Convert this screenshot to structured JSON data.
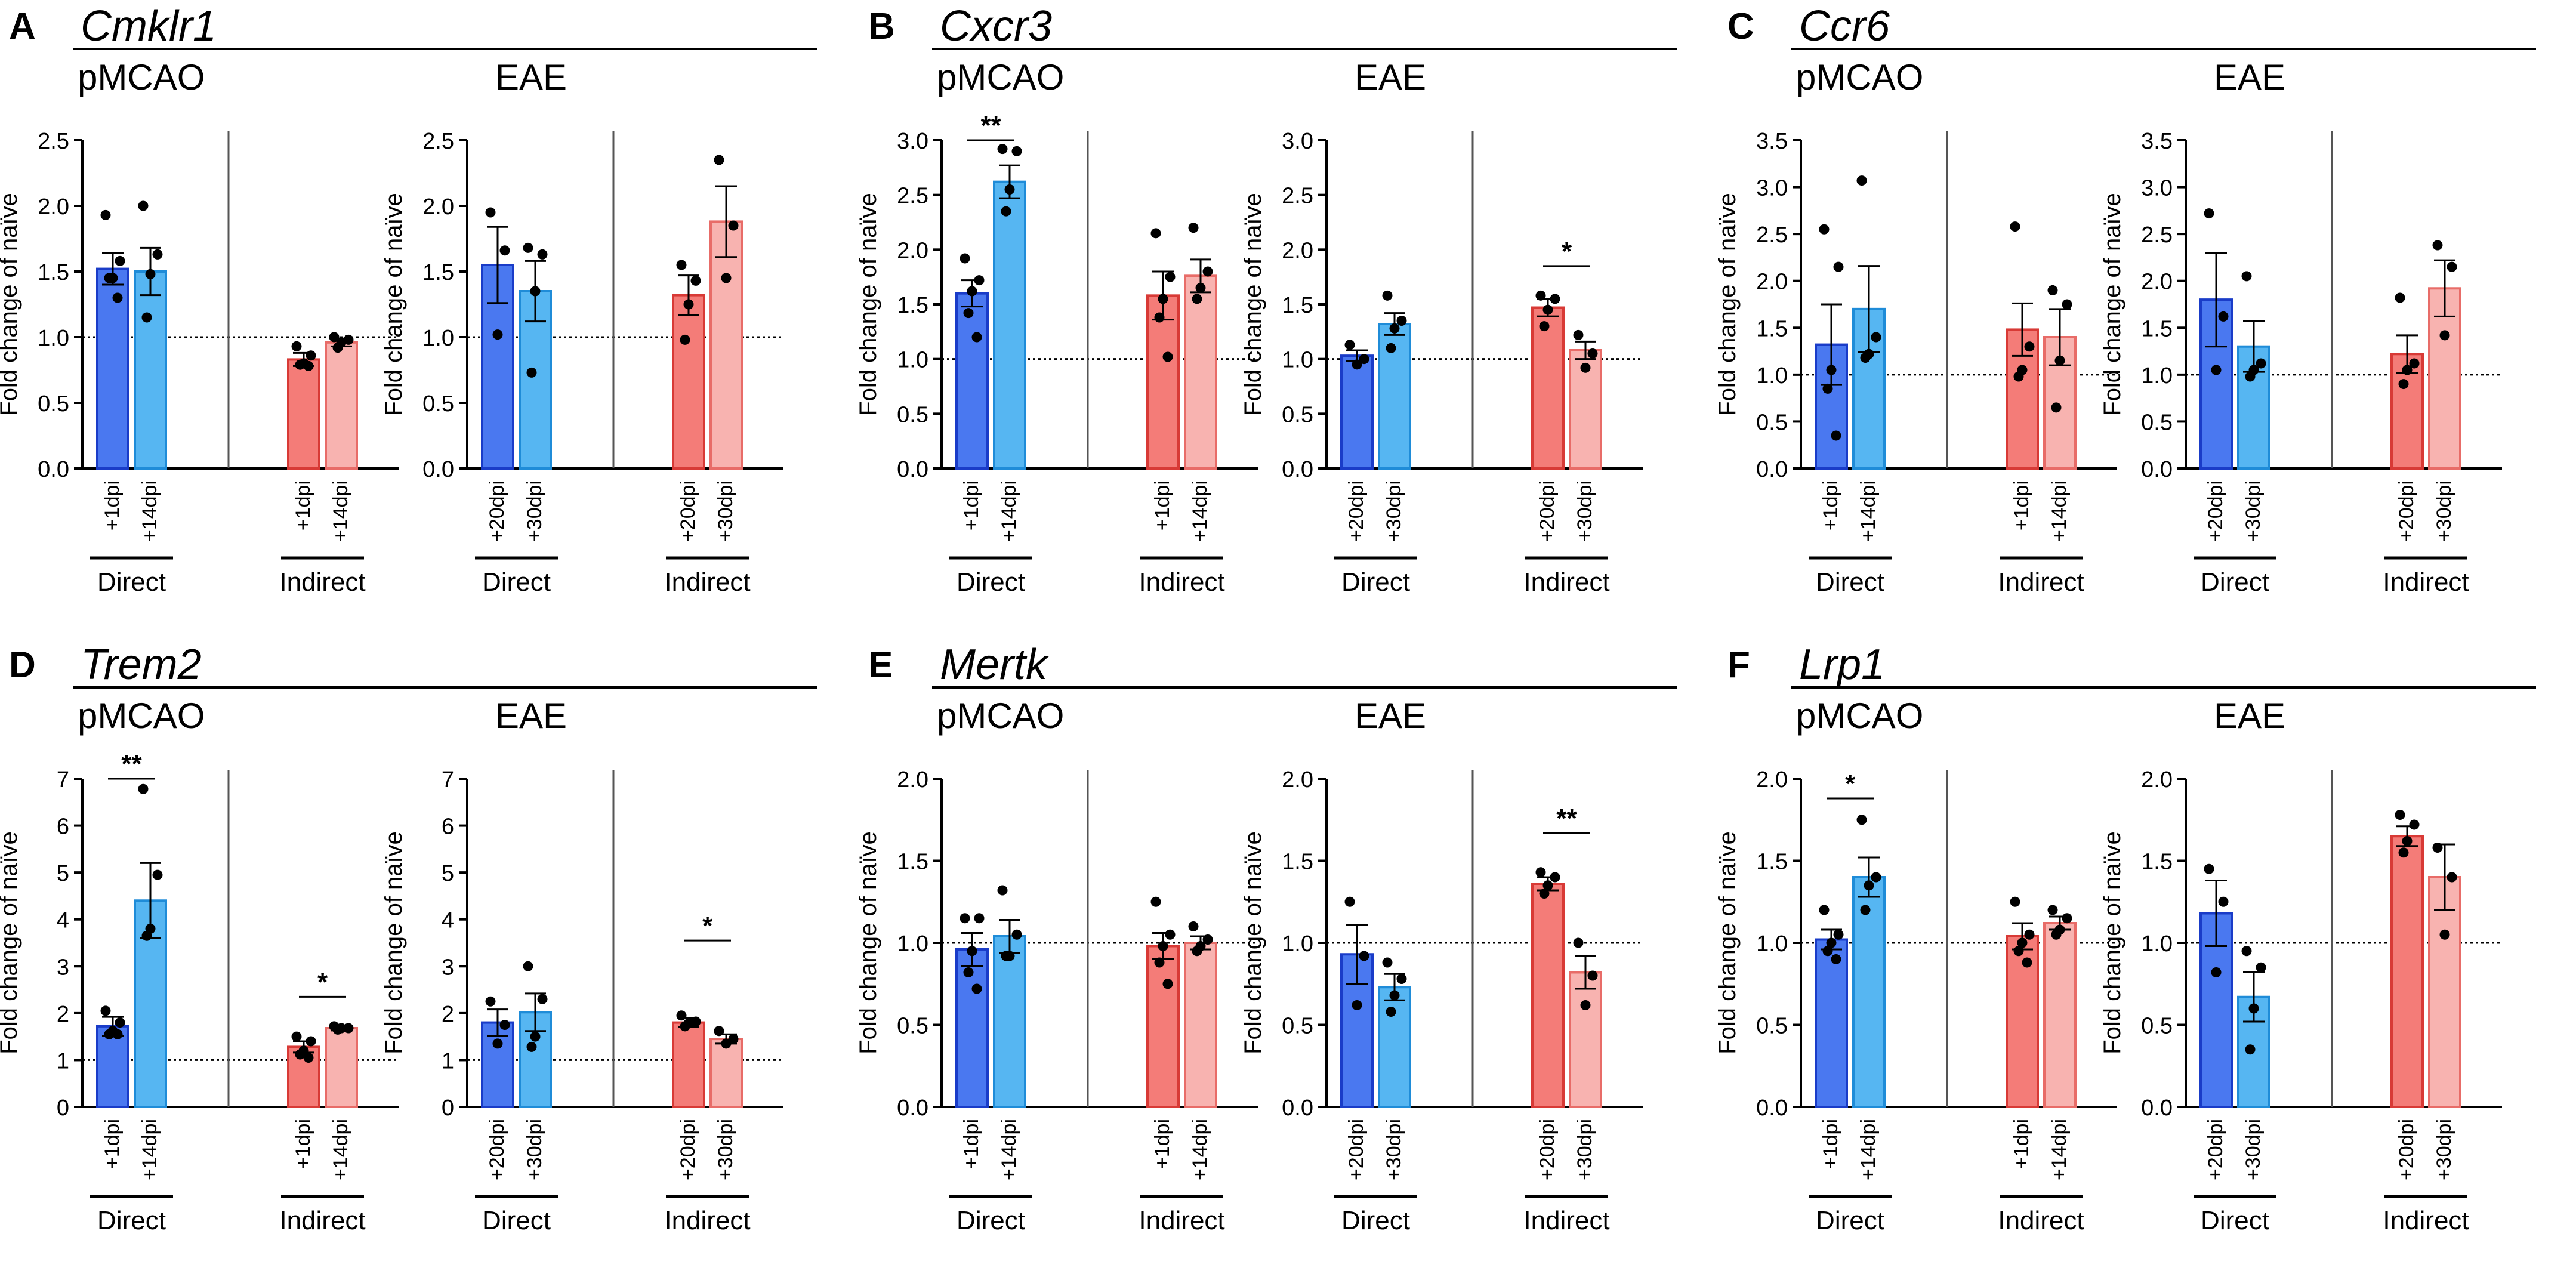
{
  "colors": {
    "direct_early": "#4a78f0",
    "direct_early_edge": "#1a3cc8",
    "direct_late": "#56b6f2",
    "direct_late_edge": "#1f8cd8",
    "indirect_early": "#f47c78",
    "indirect_early_edge": "#d83a36",
    "indirect_late": "#f8b3b0",
    "indirect_late_edge": "#e86c68"
  },
  "chart_data": [
    {
      "type": "bar",
      "panel_letter": "A",
      "gene": "Cmklr1",
      "ylabel": "Fold change of naïve",
      "ylim": [
        0,
        2.5
      ],
      "yticks": [
        "0.0",
        "0.5",
        "1.0",
        "1.5",
        "2.0",
        "2.5"
      ],
      "baseline": 1.0,
      "subplots": [
        {
          "title": "pMCAO",
          "group_labels": [
            "Direct",
            "Indirect"
          ],
          "bars": [
            {
              "label": "+1dpi",
              "mean": 1.52,
              "sem": 0.12,
              "points": [
                1.93,
                1.58,
                1.45,
                1.45,
                1.3
              ]
            },
            {
              "label": "+14dpi",
              "mean": 1.5,
              "sem": 0.18,
              "points": [
                2.0,
                1.63,
                1.48,
                1.15
              ]
            },
            {
              "label": "+1dpi",
              "mean": 0.83,
              "sem": 0.05,
              "points": [
                0.93,
                0.86,
                0.8,
                0.79,
                0.78
              ]
            },
            {
              "label": "+14dpi",
              "mean": 0.96,
              "sem": 0.03,
              "points": [
                1.0,
                0.98,
                0.96,
                0.92
              ]
            }
          ],
          "sig": []
        },
        {
          "title": "EAE",
          "group_labels": [
            "Direct",
            "Indirect"
          ],
          "bars": [
            {
              "label": "+20dpi",
              "mean": 1.55,
              "sem": 0.29,
              "points": [
                1.95,
                1.66,
                1.02
              ]
            },
            {
              "label": "+30dpi",
              "mean": 1.35,
              "sem": 0.23,
              "points": [
                1.68,
                1.63,
                1.35,
                0.73
              ]
            },
            {
              "label": "+20dpi",
              "mean": 1.32,
              "sem": 0.15,
              "points": [
                1.55,
                1.43,
                1.25,
                0.98
              ]
            },
            {
              "label": "+30dpi",
              "mean": 1.88,
              "sem": 0.27,
              "points": [
                2.35,
                1.85,
                1.45
              ]
            }
          ],
          "sig": []
        }
      ]
    },
    {
      "type": "bar",
      "panel_letter": "B",
      "gene": "Cxcr3",
      "ylabel": "Fold change of naïve",
      "ylim": [
        0,
        3.0
      ],
      "yticks": [
        "0.0",
        "0.5",
        "1.0",
        "1.5",
        "2.0",
        "2.5",
        "3.0"
      ],
      "baseline": 1.0,
      "subplots": [
        {
          "title": "pMCAO",
          "group_labels": [
            "Direct",
            "Indirect"
          ],
          "bars": [
            {
              "label": "+1dpi",
              "mean": 1.6,
              "sem": 0.12,
              "points": [
                1.92,
                1.72,
                1.62,
                1.42,
                1.2
              ]
            },
            {
              "label": "+14dpi",
              "mean": 2.62,
              "sem": 0.15,
              "points": [
                2.92,
                2.9,
                2.55,
                2.35
              ]
            },
            {
              "label": "+1dpi",
              "mean": 1.58,
              "sem": 0.22,
              "points": [
                2.15,
                1.75,
                1.55,
                1.38,
                1.02
              ]
            },
            {
              "label": "+14dpi",
              "mean": 1.76,
              "sem": 0.15,
              "points": [
                2.2,
                1.8,
                1.65,
                1.55
              ]
            }
          ],
          "sig": [
            {
              "from": 0,
              "to": 1,
              "label": "**",
              "level": 3.0
            }
          ]
        },
        {
          "title": "EAE",
          "group_labels": [
            "Direct",
            "Indirect"
          ],
          "bars": [
            {
              "label": "+20dpi",
              "mean": 1.03,
              "sem": 0.05,
              "points": [
                1.13,
                1.0,
                0.95
              ]
            },
            {
              "label": "+30dpi",
              "mean": 1.32,
              "sem": 0.1,
              "points": [
                1.58,
                1.35,
                1.28,
                1.1
              ]
            },
            {
              "label": "+20dpi",
              "mean": 1.47,
              "sem": 0.08,
              "points": [
                1.58,
                1.55,
                1.45,
                1.3
              ]
            },
            {
              "label": "+30dpi",
              "mean": 1.08,
              "sem": 0.08,
              "points": [
                1.22,
                1.05,
                0.92
              ]
            }
          ],
          "sig": [
            {
              "from": 2,
              "to": 3,
              "label": "*",
              "level": 1.85
            }
          ]
        }
      ]
    },
    {
      "type": "bar",
      "panel_letter": "C",
      "gene": "Ccr6",
      "ylabel": "Fold change of naïve",
      "ylim": [
        0,
        3.5
      ],
      "yticks": [
        "0.0",
        "0.5",
        "1.0",
        "1.5",
        "2.0",
        "2.5",
        "3.0",
        "3.5"
      ],
      "baseline": 1.0,
      "subplots": [
        {
          "title": "pMCAO",
          "group_labels": [
            "Direct",
            "Indirect"
          ],
          "bars": [
            {
              "label": "+1dpi",
              "mean": 1.32,
              "sem": 0.43,
              "points": [
                2.55,
                2.15,
                1.05,
                0.85,
                0.35
              ]
            },
            {
              "label": "+14dpi",
              "mean": 1.7,
              "sem": 0.46,
              "points": [
                3.07,
                1.4,
                1.22,
                1.18
              ]
            },
            {
              "label": "+1dpi",
              "mean": 1.48,
              "sem": 0.28,
              "points": [
                2.58,
                1.3,
                1.05,
                0.98
              ]
            },
            {
              "label": "+14dpi",
              "mean": 1.4,
              "sem": 0.3,
              "points": [
                1.9,
                1.75,
                1.15,
                0.65
              ]
            }
          ],
          "sig": []
        },
        {
          "title": "EAE",
          "group_labels": [
            "Direct",
            "Indirect"
          ],
          "bars": [
            {
              "label": "+20dpi",
              "mean": 1.8,
              "sem": 0.5,
              "points": [
                2.72,
                1.62,
                1.05
              ]
            },
            {
              "label": "+30dpi",
              "mean": 1.3,
              "sem": 0.27,
              "points": [
                2.05,
                1.12,
                1.05,
                0.98
              ]
            },
            {
              "label": "+20dpi",
              "mean": 1.22,
              "sem": 0.2,
              "points": [
                1.82,
                1.12,
                1.05,
                0.9
              ]
            },
            {
              "label": "+30dpi",
              "mean": 1.92,
              "sem": 0.3,
              "points": [
                2.38,
                2.15,
                1.42
              ]
            }
          ],
          "sig": []
        }
      ]
    },
    {
      "type": "bar",
      "panel_letter": "D",
      "gene": "Trem2",
      "ylabel": "Fold change of naïve",
      "ylim": [
        0,
        7
      ],
      "yticks": [
        "0",
        "1",
        "2",
        "3",
        "4",
        "5",
        "6",
        "7"
      ],
      "baseline": 1.0,
      "subplots": [
        {
          "title": "pMCAO",
          "group_labels": [
            "Direct",
            "Indirect"
          ],
          "bars": [
            {
              "label": "+1dpi",
              "mean": 1.72,
              "sem": 0.2,
              "points": [
                2.05,
                1.8,
                1.62,
                1.55,
                1.55
              ]
            },
            {
              "label": "+14dpi",
              "mean": 4.4,
              "sem": 0.8,
              "points": [
                6.78,
                4.95,
                3.8,
                3.65
              ]
            },
            {
              "label": "+1dpi",
              "mean": 1.28,
              "sem": 0.12,
              "points": [
                1.5,
                1.4,
                1.2,
                1.12,
                1.05
              ]
            },
            {
              "label": "+14dpi",
              "mean": 1.68,
              "sem": 0.05,
              "points": [
                1.72,
                1.68,
                1.68,
                1.65
              ]
            }
          ],
          "sig": [
            {
              "from": 0,
              "to": 1,
              "label": "**",
              "level": 7.0
            },
            {
              "from": 2,
              "to": 3,
              "label": "*",
              "level": 2.35
            }
          ]
        },
        {
          "title": "EAE",
          "group_labels": [
            "Direct",
            "Indirect"
          ],
          "bars": [
            {
              "label": "+20dpi",
              "mean": 1.8,
              "sem": 0.28,
              "points": [
                2.25,
                1.75,
                1.35
              ]
            },
            {
              "label": "+30dpi",
              "mean": 2.02,
              "sem": 0.4,
              "points": [
                3.0,
                2.3,
                1.5,
                1.28
              ]
            },
            {
              "label": "+20dpi",
              "mean": 1.8,
              "sem": 0.1,
              "points": [
                1.95,
                1.82,
                1.78,
                1.72
              ]
            },
            {
              "label": "+30dpi",
              "mean": 1.45,
              "sem": 0.1,
              "points": [
                1.62,
                1.45,
                1.35
              ]
            }
          ],
          "sig": [
            {
              "from": 2,
              "to": 3,
              "label": "*",
              "level": 3.55
            }
          ]
        }
      ]
    },
    {
      "type": "bar",
      "panel_letter": "E",
      "gene": "Mertk",
      "ylabel": "Fold change of naïve",
      "ylim": [
        0,
        2.0
      ],
      "yticks": [
        "0.0",
        "0.5",
        "1.0",
        "1.5",
        "2.0"
      ],
      "baseline": 1.0,
      "subplots": [
        {
          "title": "pMCAO",
          "group_labels": [
            "Direct",
            "Indirect"
          ],
          "bars": [
            {
              "label": "+1dpi",
              "mean": 0.96,
              "sem": 0.1,
              "points": [
                1.15,
                1.15,
                0.95,
                0.82,
                0.72
              ]
            },
            {
              "label": "+14dpi",
              "mean": 1.04,
              "sem": 0.1,
              "points": [
                1.32,
                1.05,
                0.92,
                0.92
              ]
            },
            {
              "label": "+1dpi",
              "mean": 0.98,
              "sem": 0.08,
              "points": [
                1.25,
                1.05,
                0.98,
                0.88,
                0.75
              ]
            },
            {
              "label": "+14dpi",
              "mean": 1.0,
              "sem": 0.04,
              "points": [
                1.1,
                1.02,
                0.98,
                0.95
              ]
            }
          ],
          "sig": []
        },
        {
          "title": "EAE",
          "group_labels": [
            "Direct",
            "Indirect"
          ],
          "bars": [
            {
              "label": "+20dpi",
              "mean": 0.93,
              "sem": 0.18,
              "points": [
                1.25,
                0.92,
                0.62
              ]
            },
            {
              "label": "+30dpi",
              "mean": 0.73,
              "sem": 0.08,
              "points": [
                0.88,
                0.78,
                0.68,
                0.58
              ]
            },
            {
              "label": "+20dpi",
              "mean": 1.36,
              "sem": 0.04,
              "points": [
                1.43,
                1.4,
                1.35,
                1.3
              ]
            },
            {
              "label": "+30dpi",
              "mean": 0.82,
              "sem": 0.1,
              "points": [
                1.0,
                0.8,
                0.62
              ]
            }
          ],
          "sig": [
            {
              "from": 2,
              "to": 3,
              "label": "**",
              "level": 1.67
            }
          ]
        }
      ]
    },
    {
      "type": "bar",
      "panel_letter": "F",
      "gene": "Lrp1",
      "ylabel": "Fold change of naïve",
      "ylim": [
        0,
        2.0
      ],
      "yticks": [
        "0.0",
        "0.5",
        "1.0",
        "1.5",
        "2.0"
      ],
      "baseline": 1.0,
      "subplots": [
        {
          "title": "pMCAO",
          "group_labels": [
            "Direct",
            "Indirect"
          ],
          "bars": [
            {
              "label": "+1dpi",
              "mean": 1.02,
              "sem": 0.06,
              "points": [
                1.2,
                1.05,
                1.0,
                0.95,
                0.9
              ]
            },
            {
              "label": "+14dpi",
              "mean": 1.4,
              "sem": 0.12,
              "points": [
                1.75,
                1.4,
                1.35,
                1.2
              ]
            },
            {
              "label": "+1dpi",
              "mean": 1.04,
              "sem": 0.08,
              "points": [
                1.25,
                1.05,
                1.0,
                0.95,
                0.88
              ]
            },
            {
              "label": "+14dpi",
              "mean": 1.12,
              "sem": 0.04,
              "points": [
                1.2,
                1.15,
                1.08,
                1.05
              ]
            }
          ],
          "sig": [
            {
              "from": 0,
              "to": 1,
              "label": "*",
              "level": 1.88
            }
          ]
        },
        {
          "title": "EAE",
          "group_labels": [
            "Direct",
            "Indirect"
          ],
          "bars": [
            {
              "label": "+20dpi",
              "mean": 1.18,
              "sem": 0.2,
              "points": [
                1.45,
                1.25,
                0.82
              ]
            },
            {
              "label": "+30dpi",
              "mean": 0.67,
              "sem": 0.15,
              "points": [
                0.95,
                0.85,
                0.6,
                0.35
              ]
            },
            {
              "label": "+20dpi",
              "mean": 1.65,
              "sem": 0.06,
              "points": [
                1.78,
                1.72,
                1.62,
                1.55
              ]
            },
            {
              "label": "+30dpi",
              "mean": 1.4,
              "sem": 0.2,
              "points": [
                1.58,
                1.4,
                1.05
              ]
            }
          ],
          "sig": []
        }
      ]
    }
  ]
}
